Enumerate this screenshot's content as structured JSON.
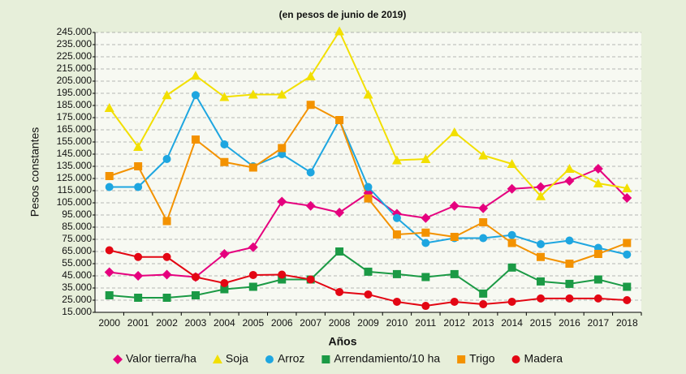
{
  "chart_data": {
    "type": "line",
    "title": "(en pesos de junio de 2019)",
    "xlabel": "Años",
    "ylabel": "Pesos  constantes",
    "categories": [
      "2000",
      "2001",
      "2002",
      "2003",
      "2004",
      "2005",
      "2006",
      "2007",
      "2008",
      "2009",
      "2010",
      "2011",
      "2012",
      "2013",
      "2014",
      "2015",
      "2016",
      "2017",
      "2018"
    ],
    "ylim": [
      15000,
      245000
    ],
    "yticks": [
      {
        "value": 15000,
        "label": "15.000"
      },
      {
        "value": 25000,
        "label": "25.000"
      },
      {
        "value": 35000,
        "label": "35.000"
      },
      {
        "value": 45000,
        "label": "45.000"
      },
      {
        "value": 55000,
        "label": "55.000"
      },
      {
        "value": 65000,
        "label": "65.000"
      },
      {
        "value": 75000,
        "label": "75.000"
      },
      {
        "value": 85000,
        "label": "85.000"
      },
      {
        "value": 95000,
        "label": "95.000"
      },
      {
        "value": 105000,
        "label": "105.000"
      },
      {
        "value": 115000,
        "label": "115.000"
      },
      {
        "value": 125000,
        "label": "125.000"
      },
      {
        "value": 135000,
        "label": "135.000"
      },
      {
        "value": 145000,
        "label": "145.000"
      },
      {
        "value": 155000,
        "label": "155.000"
      },
      {
        "value": 165000,
        "label": "165.000"
      },
      {
        "value": 175000,
        "label": "175.000"
      },
      {
        "value": 185000,
        "label": "185.000"
      },
      {
        "value": 195000,
        "label": "195.000"
      },
      {
        "value": 205000,
        "label": "205.000"
      },
      {
        "value": 215000,
        "label": "215.000"
      },
      {
        "value": 225000,
        "label": "225.000"
      },
      {
        "value": 235000,
        "label": "235.000"
      },
      {
        "value": 245000,
        "label": "245.000"
      }
    ],
    "grid": true,
    "legend": "bottom",
    "series": [
      {
        "name": "Valor tierra/ha",
        "color": "#e5007e",
        "marker": "diamond",
        "values": [
          48000,
          45000,
          46000,
          44000,
          63000,
          68500,
          106000,
          102500,
          97000,
          113000,
          96000,
          92500,
          102500,
          100500,
          116500,
          118000,
          123000,
          133000,
          109000
        ]
      },
      {
        "name": "Soja",
        "color": "#f2df00",
        "marker": "triangle",
        "values": [
          183000,
          151000,
          193500,
          209500,
          192000,
          194000,
          194000,
          209000,
          246000,
          194000,
          140000,
          141000,
          163000,
          144000,
          137000,
          110500,
          133000,
          121000,
          117000
        ]
      },
      {
        "name": "Arroz",
        "color": "#1ea6e0",
        "marker": "circle",
        "values": [
          118000,
          118000,
          141000,
          193500,
          153000,
          135000,
          145000,
          130000,
          173000,
          118000,
          92500,
          72000,
          76000,
          76000,
          78500,
          71000,
          74000,
          68000,
          62500
        ]
      },
      {
        "name": "Arrendamiento/10 ha",
        "color": "#1b9a45",
        "marker": "square",
        "values": [
          29000,
          27000,
          27000,
          29000,
          34000,
          36000,
          42000,
          42000,
          65000,
          48400,
          46400,
          44000,
          46400,
          30400,
          51800,
          40400,
          38400,
          42000,
          36000
        ]
      },
      {
        "name": "Trigo",
        "color": "#f39200",
        "marker": "square",
        "values": [
          127000,
          135000,
          90000,
          157000,
          138500,
          134000,
          150000,
          185500,
          173000,
          108600,
          79000,
          80500,
          77000,
          89000,
          72000,
          60500,
          55000,
          63000,
          72000
        ]
      },
      {
        "name": "Madera",
        "color": "#e30613",
        "marker": "circle",
        "values": [
          66000,
          60500,
          60500,
          44000,
          39000,
          45700,
          46000,
          42000,
          31700,
          29700,
          23700,
          20300,
          23700,
          21700,
          23700,
          26400,
          26400,
          26400,
          25000
        ]
      }
    ]
  }
}
